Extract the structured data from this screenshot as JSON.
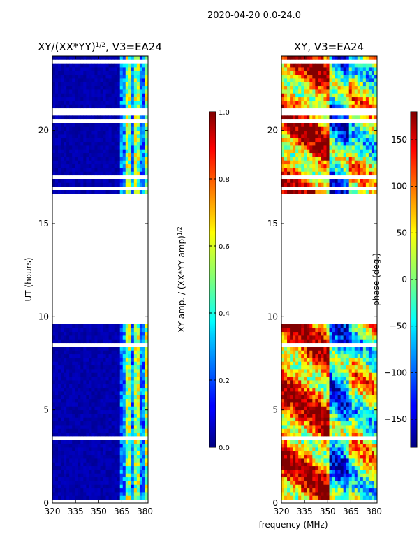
{
  "figure": {
    "suptitle": "2020-04-20 0.0-24.0",
    "shared_xlabel": "frequency (MHz)"
  },
  "chart_data": [
    {
      "type": "heatmap",
      "title": "XY/(XX*YY)",
      "title_exponent": "1/2",
      "title_suffix": ", V3=EA24",
      "xlabel": "",
      "ylabel": "UT (hours)",
      "xlim": [
        320,
        382
      ],
      "ylim": [
        0,
        24
      ],
      "xticks": [
        320,
        335,
        350,
        365,
        380
      ],
      "yticks": [
        0,
        5,
        10,
        15,
        20
      ],
      "colormap": "jet",
      "data_gaps_hours": [
        [
          9.5,
          16.5
        ]
      ],
      "colorbar": {
        "label": "XY amp. / (XX*YY amp)",
        "label_exponent": "1/2",
        "range": [
          0.0,
          1.0
        ],
        "ticks": [
          "0.0",
          "0.2",
          "0.4",
          "0.6",
          "0.8",
          "1.0"
        ]
      }
    },
    {
      "type": "heatmap",
      "title": "XY, V3=EA24",
      "xlabel": "frequency (MHz)",
      "ylabel": "",
      "xlim": [
        320,
        382
      ],
      "ylim": [
        0,
        24
      ],
      "xticks": [
        320,
        335,
        350,
        365,
        380
      ],
      "yticks": [
        0,
        5,
        10,
        15,
        20
      ],
      "colormap": "jet",
      "data_gaps_hours": [
        [
          9.5,
          16.5
        ]
      ],
      "colorbar": {
        "label": "phase (deg.)",
        "range": [
          -180,
          180
        ],
        "ticks": [
          "−150",
          "−100",
          "−50",
          "0",
          "50",
          "100",
          "150"
        ]
      }
    }
  ]
}
